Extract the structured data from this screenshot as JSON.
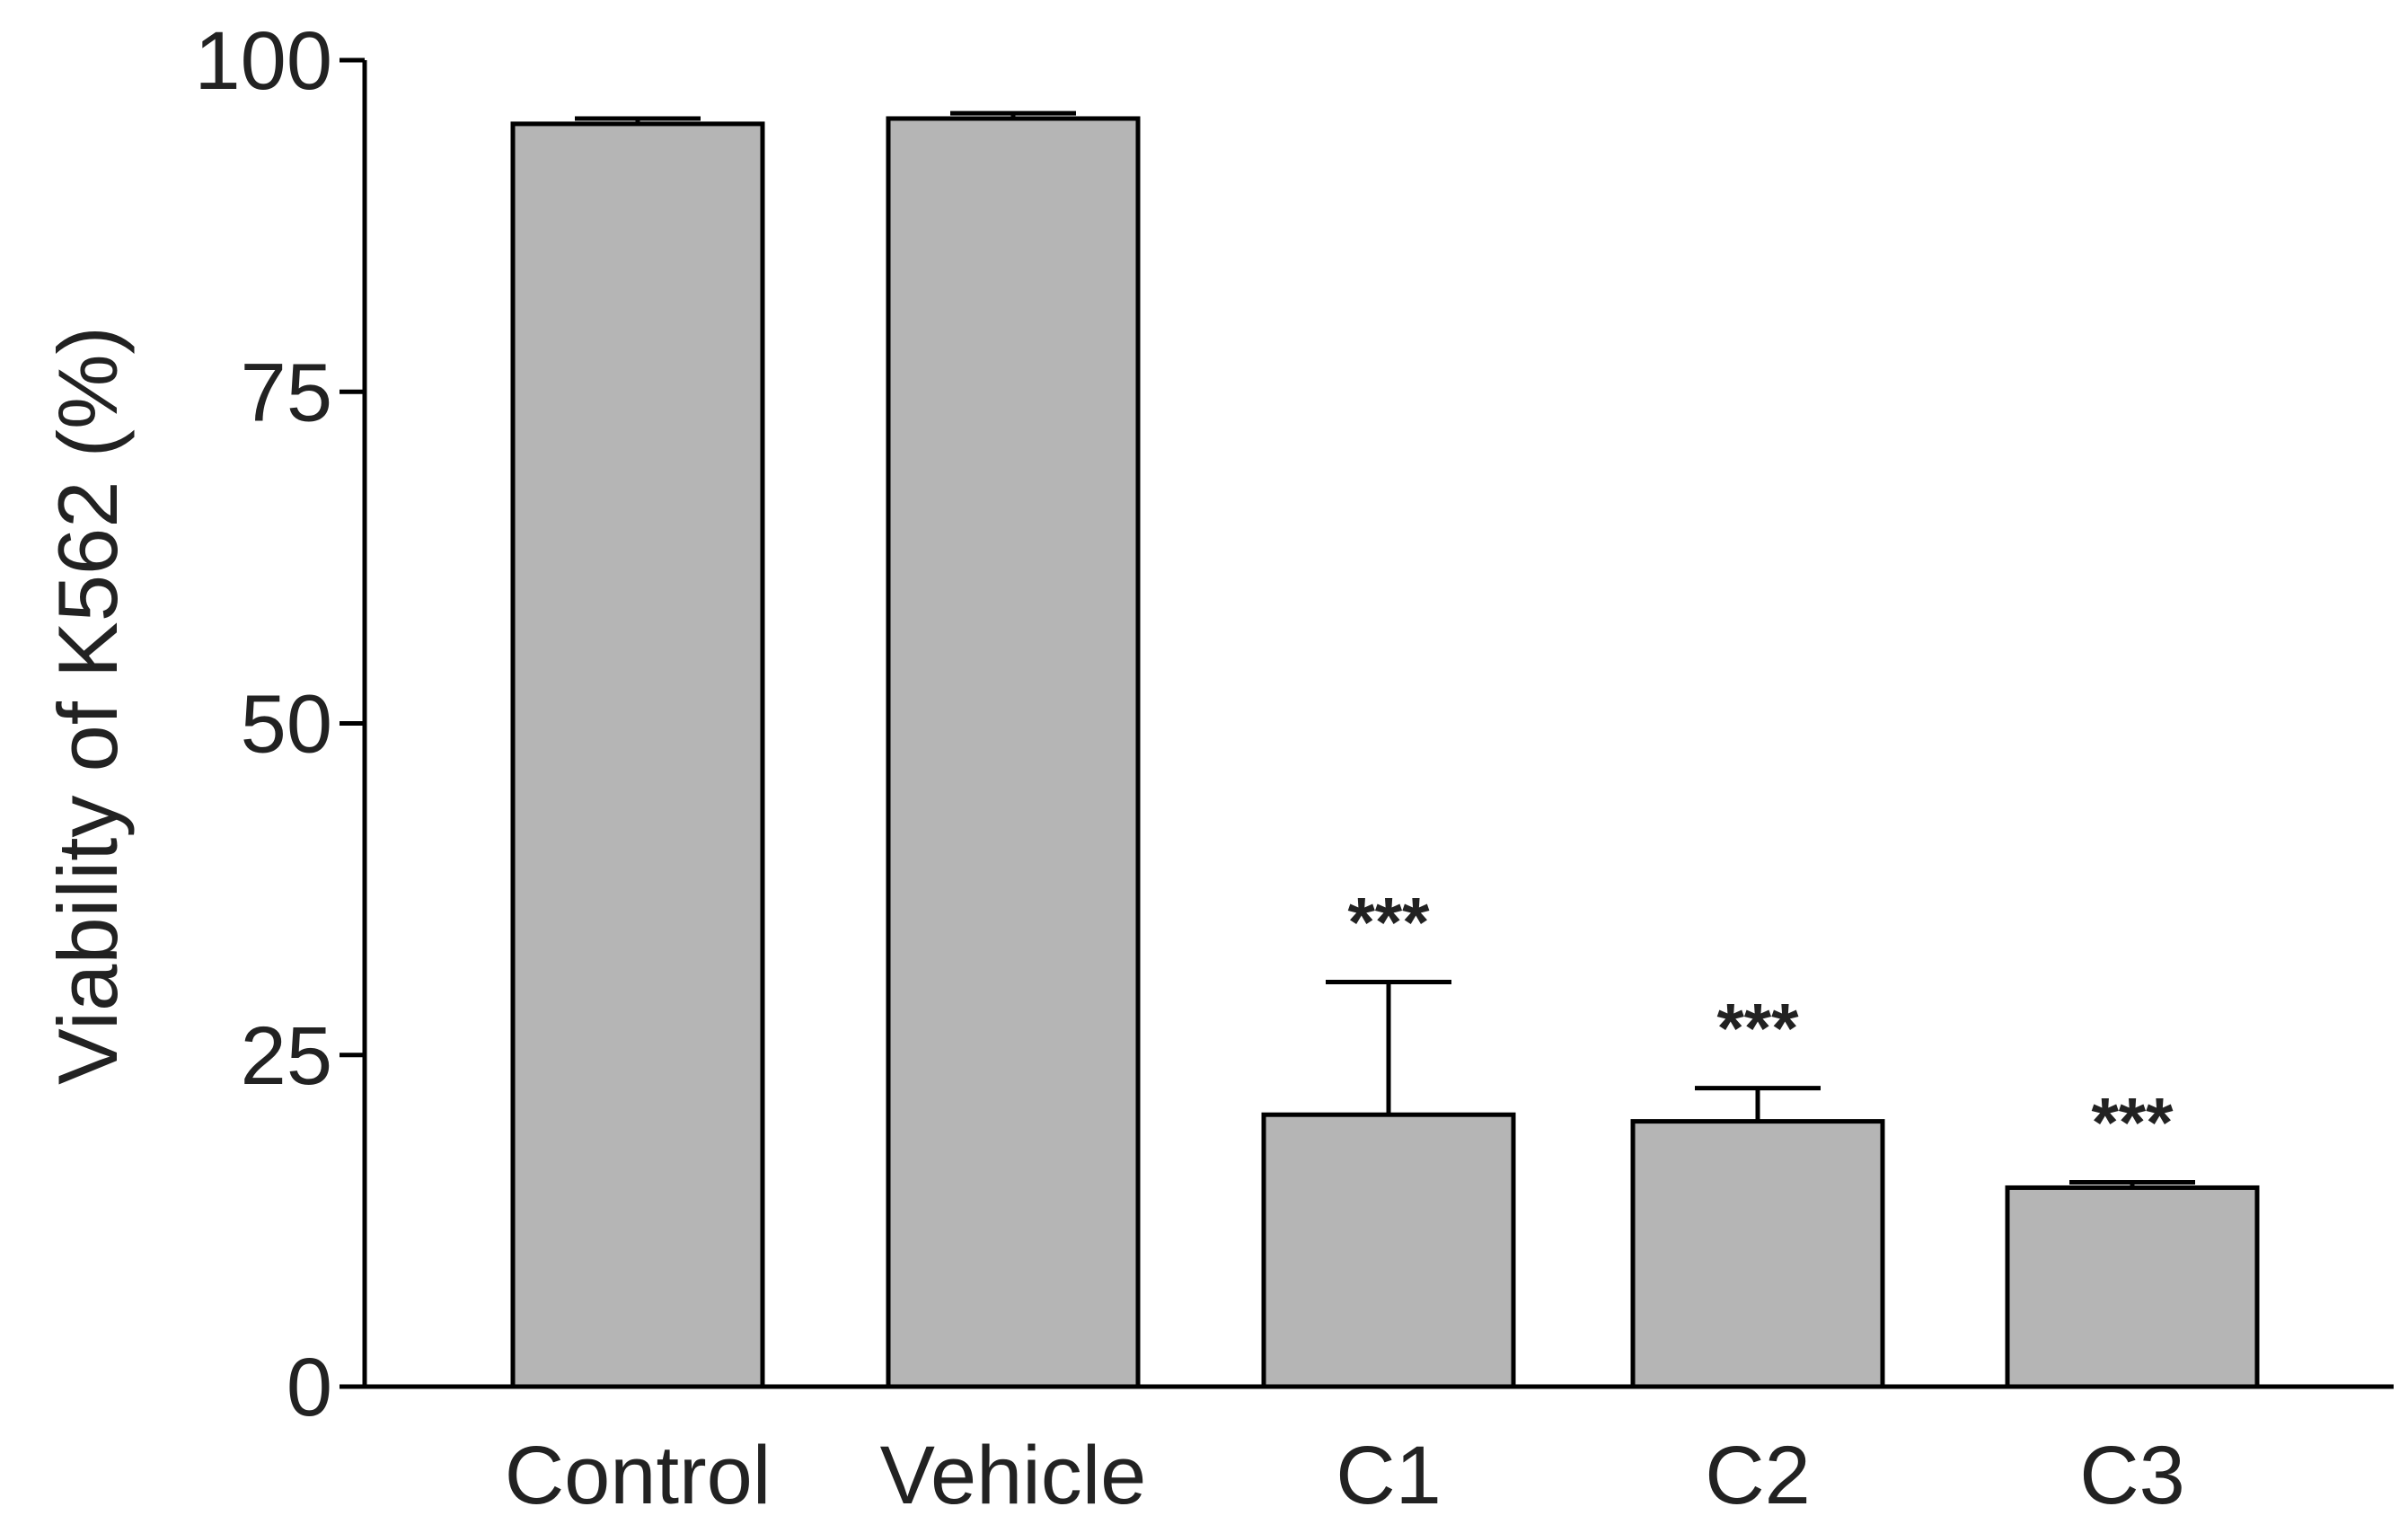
{
  "chart_data": {
    "type": "bar",
    "title": "",
    "xlabel": "",
    "ylabel": "Viability  of K562 (%)",
    "ylim": [
      0,
      100
    ],
    "yticks": [
      "0",
      "25",
      "50",
      "75",
      "100"
    ],
    "categories": [
      "Control",
      "Vehicle",
      "C1",
      "C2",
      "C3"
    ],
    "values": [
      95.2,
      95.6,
      20.5,
      20.0,
      15.0
    ],
    "errors": [
      0.4,
      0.4,
      10.0,
      2.5,
      0.4
    ],
    "annotations": [
      "",
      "",
      "***",
      "***",
      "***"
    ],
    "grid": false,
    "legend": "none",
    "colors": {
      "bar": "#b5b5b5",
      "stroke": "#000000",
      "text": "#222222"
    }
  }
}
